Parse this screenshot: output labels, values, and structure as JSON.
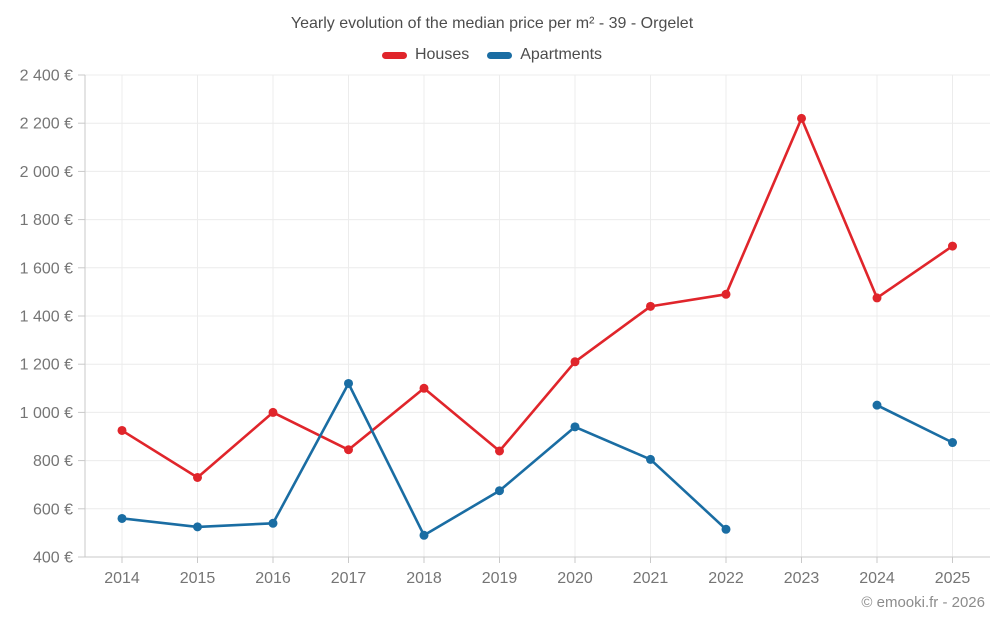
{
  "chart": {
    "title": "Yearly evolution of the median price per m² - 39 - Orgelet",
    "footer": "© emooki.fr - 2026"
  },
  "chart_data": {
    "type": "line",
    "title": "Yearly evolution of the median price per m² - 39 - Orgelet",
    "xlabel": "",
    "ylabel": "",
    "categories": [
      "2014",
      "2015",
      "2016",
      "2017",
      "2018",
      "2019",
      "2020",
      "2021",
      "2022",
      "2023",
      "2024",
      "2025"
    ],
    "series": [
      {
        "name": "Houses",
        "color": "#e0252b",
        "values": [
          925,
          730,
          1000,
          845,
          1100,
          840,
          1210,
          1440,
          1490,
          2220,
          1475,
          1690
        ]
      },
      {
        "name": "Apartments",
        "color": "#1a6da3",
        "values": [
          560,
          525,
          540,
          1120,
          490,
          675,
          940,
          805,
          515,
          null,
          1030,
          875
        ]
      }
    ],
    "ylim": [
      400,
      2400
    ],
    "y_ticks": [
      {
        "value": 400,
        "label": "400 €"
      },
      {
        "value": 600,
        "label": "600 €"
      },
      {
        "value": 800,
        "label": "800 €"
      },
      {
        "value": 1000,
        "label": "1 000 €"
      },
      {
        "value": 1200,
        "label": "1 200 €"
      },
      {
        "value": 1400,
        "label": "1 400 €"
      },
      {
        "value": 1600,
        "label": "1 600 €"
      },
      {
        "value": 1800,
        "label": "1 800 €"
      },
      {
        "value": 2000,
        "label": "2 000 €"
      },
      {
        "value": 2200,
        "label": "2 200 €"
      },
      {
        "value": 2400,
        "label": "2 400 €"
      }
    ],
    "legend_position": "top",
    "grid": true,
    "colors": {
      "grid": "#ececec",
      "axis": "#c9c9c9",
      "tick_text": "#757575",
      "title_text": "#4d4d4d",
      "footer_text": "#8c8c8c"
    }
  }
}
